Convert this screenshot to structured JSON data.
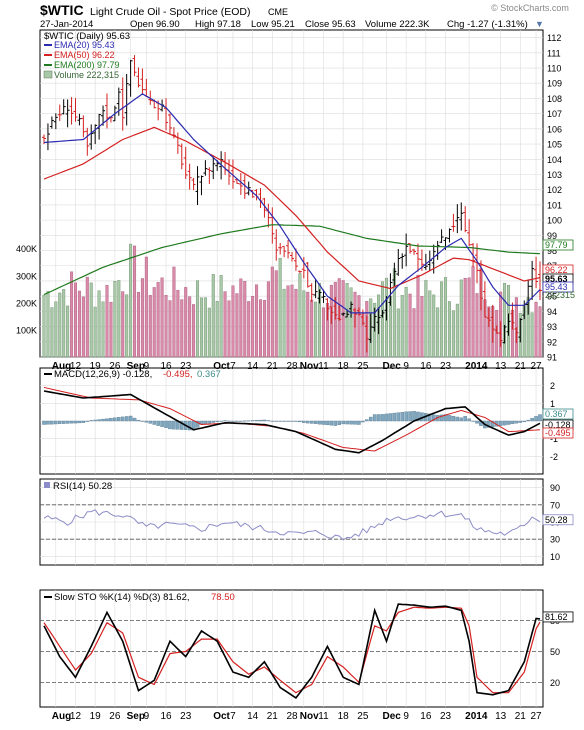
{
  "header": {
    "symbol": "$WTIC",
    "name": "Light Crude Oil - Spot Price (EOD)",
    "exchange": "CME",
    "watermark": "© StockCharts.com",
    "date": "27-Jan-2014",
    "open": "Open 96.90",
    "high": "High 97.18",
    "low": "Low 95.21",
    "close": "Close 95.63",
    "volume": "Volume 222.3K",
    "chg": "Chg -1.27 (-1.31%)",
    "chg_arrow": "▼"
  },
  "legend": {
    "main": "$WTIC (Daily) 95.63",
    "ema20": "EMA(20) 95.43",
    "ema50": "EMA(50) 96.22",
    "ema200": "EMA(200) 97.79",
    "volume": "Volume 222,315",
    "macd_a": "MACD(12,26,9) -0.128,",
    "macd_b": "-0.495,",
    "macd_c": "0.367",
    "rsi": "RSI(14) 50.28",
    "sto_a": "Slow STO %K(14) %D(3) 81.62,",
    "sto_b": "78.50"
  },
  "colors": {
    "ema20": "#2b2bb0",
    "ema50": "#d42020",
    "ema200": "#1f7a1f",
    "vol_up": "#a8c8a8",
    "vol_down": "#d88aa8",
    "macd_hist": "#7fa7c0",
    "rsi_line": "#8c8cc8",
    "grid": "#dcdcdc"
  },
  "chart_data": [
    {
      "type": "candlestick",
      "ylim": [
        91,
        112.5
      ],
      "price_ticks": [
        91,
        92,
        93,
        94,
        95,
        96,
        97,
        98,
        99,
        100,
        101,
        102,
        103,
        104,
        105,
        106,
        107,
        108,
        109,
        110,
        111,
        112
      ],
      "volume_ticks": [
        "100K",
        "200K",
        "300K",
        "400K"
      ],
      "volume_tick_values": [
        100000,
        200000,
        300000,
        400000
      ],
      "volume_max": 480000,
      "month_labels": [
        "Aug",
        "Sep",
        "Oct",
        "Nov",
        "Dec",
        "2014"
      ],
      "month_indices": [
        3,
        22,
        44,
        66,
        87,
        108
      ],
      "day_labels": [
        "12",
        "19",
        "26",
        "9",
        "16",
        "23",
        "7",
        "14",
        "21",
        "28",
        "11",
        "18",
        "25",
        "9",
        "16",
        "23",
        "13",
        "21",
        "27"
      ],
      "day_indices": [
        8,
        13,
        18,
        26,
        31,
        36,
        48,
        53,
        58,
        63,
        71,
        76,
        81,
        92,
        97,
        102,
        116,
        121,
        125
      ],
      "current_labels": [
        "97.79",
        "96.22",
        "95.63",
        "95.43",
        "222315"
      ],
      "series_anchor_points": {
        "close": [
          [
            0,
            105.4
          ],
          [
            3,
            106.8
          ],
          [
            6,
            107.5
          ],
          [
            9,
            106.4
          ],
          [
            11,
            104.8
          ],
          [
            13,
            106.2
          ],
          [
            15,
            107.3
          ],
          [
            17,
            106.6
          ],
          [
            19,
            108.6
          ],
          [
            20,
            107.0
          ],
          [
            22,
            110.5
          ],
          [
            24,
            109.0
          ],
          [
            27,
            107.6
          ],
          [
            30,
            107.5
          ],
          [
            32,
            105.9
          ],
          [
            34,
            104.8
          ],
          [
            36,
            103.0
          ],
          [
            38,
            102.1
          ],
          [
            40,
            103.0
          ],
          [
            43,
            103.7
          ],
          [
            45,
            103.9
          ],
          [
            47,
            103.0
          ],
          [
            49,
            102.6
          ],
          [
            51,
            102.0
          ],
          [
            53,
            101.7
          ],
          [
            55,
            101.4
          ],
          [
            57,
            100.0
          ],
          [
            59,
            97.9
          ],
          [
            61,
            98.2
          ],
          [
            62,
            97.7
          ],
          [
            64,
            96.7
          ],
          [
            66,
            96.9
          ],
          [
            68,
            95.0
          ],
          [
            70,
            95.0
          ],
          [
            72,
            94.4
          ],
          [
            74,
            93.7
          ],
          [
            76,
            93.6
          ],
          [
            78,
            94.2
          ],
          [
            80,
            93.6
          ],
          [
            82,
            92.3
          ],
          [
            84,
            93.4
          ],
          [
            86,
            93.8
          ],
          [
            88,
            95.9
          ],
          [
            90,
            97.5
          ],
          [
            92,
            98.3
          ],
          [
            94,
            97.8
          ],
          [
            96,
            96.9
          ],
          [
            98,
            97.3
          ],
          [
            100,
            98.4
          ],
          [
            102,
            98.9
          ],
          [
            104,
            99.7
          ],
          [
            106,
            100.3
          ],
          [
            108,
            98.4
          ],
          [
            110,
            96.4
          ],
          [
            112,
            93.8
          ],
          [
            114,
            92.9
          ],
          [
            116,
            91.8
          ],
          [
            118,
            93.6
          ],
          [
            120,
            92.6
          ],
          [
            122,
            94.4
          ],
          [
            124,
            96.7
          ],
          [
            126,
            95.6
          ]
        ],
        "ema20": [
          [
            0,
            105.1
          ],
          [
            10,
            105.3
          ],
          [
            18,
            107.0
          ],
          [
            25,
            108.3
          ],
          [
            31,
            107.4
          ],
          [
            38,
            105.3
          ],
          [
            46,
            103.4
          ],
          [
            54,
            101.6
          ],
          [
            60,
            99.6
          ],
          [
            66,
            97.2
          ],
          [
            72,
            95.0
          ],
          [
            78,
            93.9
          ],
          [
            84,
            93.9
          ],
          [
            90,
            95.7
          ],
          [
            96,
            96.9
          ],
          [
            102,
            98.2
          ],
          [
            106,
            98.8
          ],
          [
            110,
            97.3
          ],
          [
            114,
            95.6
          ],
          [
            118,
            94.4
          ],
          [
            122,
            94.4
          ],
          [
            126,
            95.43
          ]
        ],
        "ema50": [
          [
            0,
            102.7
          ],
          [
            10,
            103.7
          ],
          [
            20,
            105.3
          ],
          [
            28,
            106.1
          ],
          [
            36,
            105.2
          ],
          [
            46,
            103.8
          ],
          [
            56,
            102.3
          ],
          [
            64,
            100.3
          ],
          [
            72,
            97.9
          ],
          [
            80,
            96.0
          ],
          [
            88,
            95.5
          ],
          [
            96,
            96.4
          ],
          [
            104,
            97.5
          ],
          [
            108,
            97.4
          ],
          [
            116,
            96.6
          ],
          [
            122,
            96.0
          ],
          [
            126,
            96.22
          ]
        ],
        "ema200": [
          [
            0,
            95.1
          ],
          [
            15,
            96.9
          ],
          [
            30,
            98.2
          ],
          [
            45,
            99.1
          ],
          [
            58,
            99.7
          ],
          [
            70,
            99.6
          ],
          [
            82,
            98.8
          ],
          [
            95,
            98.3
          ],
          [
            108,
            98.2
          ],
          [
            118,
            97.9
          ],
          [
            126,
            97.79
          ]
        ],
        "volume": [
          [
            0,
            230000
          ],
          [
            8,
            260000
          ],
          [
            16,
            240000
          ],
          [
            22,
            330000
          ],
          [
            28,
            270000
          ],
          [
            40,
            240000
          ],
          [
            50,
            250000
          ],
          [
            58,
            300000
          ],
          [
            64,
            260000
          ],
          [
            72,
            230000
          ],
          [
            80,
            220000
          ],
          [
            88,
            260000
          ],
          [
            96,
            230000
          ],
          [
            104,
            240000
          ],
          [
            110,
            280000
          ],
          [
            118,
            220000
          ],
          [
            126,
            222315
          ]
        ]
      }
    },
    {
      "type": "line",
      "title": "MACD(12,26,9)",
      "ylim": [
        -3,
        3
      ],
      "ticks": [
        2,
        1,
        0,
        -1,
        -2
      ],
      "current_labels": [
        "0.367",
        "-0.128",
        "-0.495"
      ],
      "macd_anchor_points": [
        [
          0,
          1.7
        ],
        [
          10,
          1.3
        ],
        [
          22,
          1.5
        ],
        [
          30,
          0.5
        ],
        [
          38,
          -0.5
        ],
        [
          46,
          -0.1
        ],
        [
          56,
          -0.2
        ],
        [
          64,
          -0.6
        ],
        [
          74,
          -1.6
        ],
        [
          80,
          -1.8
        ],
        [
          86,
          -1.1
        ],
        [
          94,
          0.0
        ],
        [
          102,
          0.7
        ],
        [
          107,
          0.8
        ],
        [
          112,
          -0.2
        ],
        [
          118,
          -0.8
        ],
        [
          122,
          -0.6
        ],
        [
          126,
          -0.128
        ]
      ],
      "signal_anchor_points": [
        [
          0,
          1.9
        ],
        [
          12,
          1.3
        ],
        [
          24,
          1.2
        ],
        [
          32,
          0.7
        ],
        [
          40,
          -0.2
        ],
        [
          48,
          -0.1
        ],
        [
          58,
          -0.3
        ],
        [
          66,
          -0.7
        ],
        [
          76,
          -1.5
        ],
        [
          84,
          -1.7
        ],
        [
          92,
          -0.8
        ],
        [
          100,
          0.2
        ],
        [
          106,
          0.6
        ],
        [
          112,
          0.2
        ],
        [
          118,
          -0.6
        ],
        [
          122,
          -0.55
        ],
        [
          126,
          -0.495
        ]
      ]
    },
    {
      "type": "line",
      "title": "RSI(14)",
      "ylim": [
        0,
        100
      ],
      "ticks": [
        90,
        70,
        50,
        30,
        10
      ],
      "current_labels": [
        "50.28"
      ],
      "rsi_anchor_points": [
        [
          0,
          55
        ],
        [
          6,
          50
        ],
        [
          12,
          62
        ],
        [
          20,
          58
        ],
        [
          26,
          44
        ],
        [
          32,
          47
        ],
        [
          40,
          42
        ],
        [
          46,
          50
        ],
        [
          52,
          45
        ],
        [
          58,
          40
        ],
        [
          64,
          36
        ],
        [
          70,
          38
        ],
        [
          76,
          30
        ],
        [
          82,
          40
        ],
        [
          88,
          55
        ],
        [
          94,
          56
        ],
        [
          100,
          60
        ],
        [
          106,
          58
        ],
        [
          110,
          42
        ],
        [
          114,
          38
        ],
        [
          118,
          36
        ],
        [
          122,
          45
        ],
        [
          124,
          58
        ],
        [
          126,
          50.28
        ]
      ]
    },
    {
      "type": "line",
      "title": "Slow STO %K(14) %D(3)",
      "ylim": [
        0,
        100
      ],
      "ticks": [
        80,
        50,
        20
      ],
      "current_labels": [
        "81.62"
      ],
      "k_anchor_points": [
        [
          0,
          75
        ],
        [
          4,
          45
        ],
        [
          8,
          25
        ],
        [
          12,
          55
        ],
        [
          16,
          88
        ],
        [
          20,
          60
        ],
        [
          24,
          12
        ],
        [
          28,
          22
        ],
        [
          32,
          60
        ],
        [
          36,
          45
        ],
        [
          40,
          70
        ],
        [
          44,
          60
        ],
        [
          48,
          30
        ],
        [
          52,
          25
        ],
        [
          56,
          40
        ],
        [
          60,
          15
        ],
        [
          64,
          5
        ],
        [
          68,
          25
        ],
        [
          72,
          55
        ],
        [
          76,
          25
        ],
        [
          80,
          18
        ],
        [
          84,
          90
        ],
        [
          87,
          60
        ],
        [
          90,
          96
        ],
        [
          94,
          95
        ],
        [
          98,
          93
        ],
        [
          102,
          94
        ],
        [
          106,
          90
        ],
        [
          108,
          60
        ],
        [
          110,
          10
        ],
        [
          114,
          8
        ],
        [
          118,
          12
        ],
        [
          122,
          40
        ],
        [
          125,
          82
        ],
        [
          126,
          81.62
        ]
      ],
      "d_anchor_points": [
        [
          0,
          78
        ],
        [
          4,
          55
        ],
        [
          8,
          32
        ],
        [
          12,
          48
        ],
        [
          16,
          78
        ],
        [
          20,
          68
        ],
        [
          24,
          25
        ],
        [
          28,
          18
        ],
        [
          32,
          48
        ],
        [
          36,
          50
        ],
        [
          40,
          62
        ],
        [
          44,
          62
        ],
        [
          48,
          40
        ],
        [
          52,
          28
        ],
        [
          56,
          35
        ],
        [
          60,
          22
        ],
        [
          64,
          10
        ],
        [
          68,
          18
        ],
        [
          72,
          45
        ],
        [
          76,
          35
        ],
        [
          80,
          20
        ],
        [
          84,
          75
        ],
        [
          87,
          70
        ],
        [
          90,
          88
        ],
        [
          94,
          93
        ],
        [
          98,
          92
        ],
        [
          102,
          93
        ],
        [
          106,
          92
        ],
        [
          108,
          75
        ],
        [
          110,
          25
        ],
        [
          114,
          10
        ],
        [
          118,
          10
        ],
        [
          122,
          30
        ],
        [
          125,
          72
        ],
        [
          126,
          78.5
        ]
      ]
    }
  ]
}
